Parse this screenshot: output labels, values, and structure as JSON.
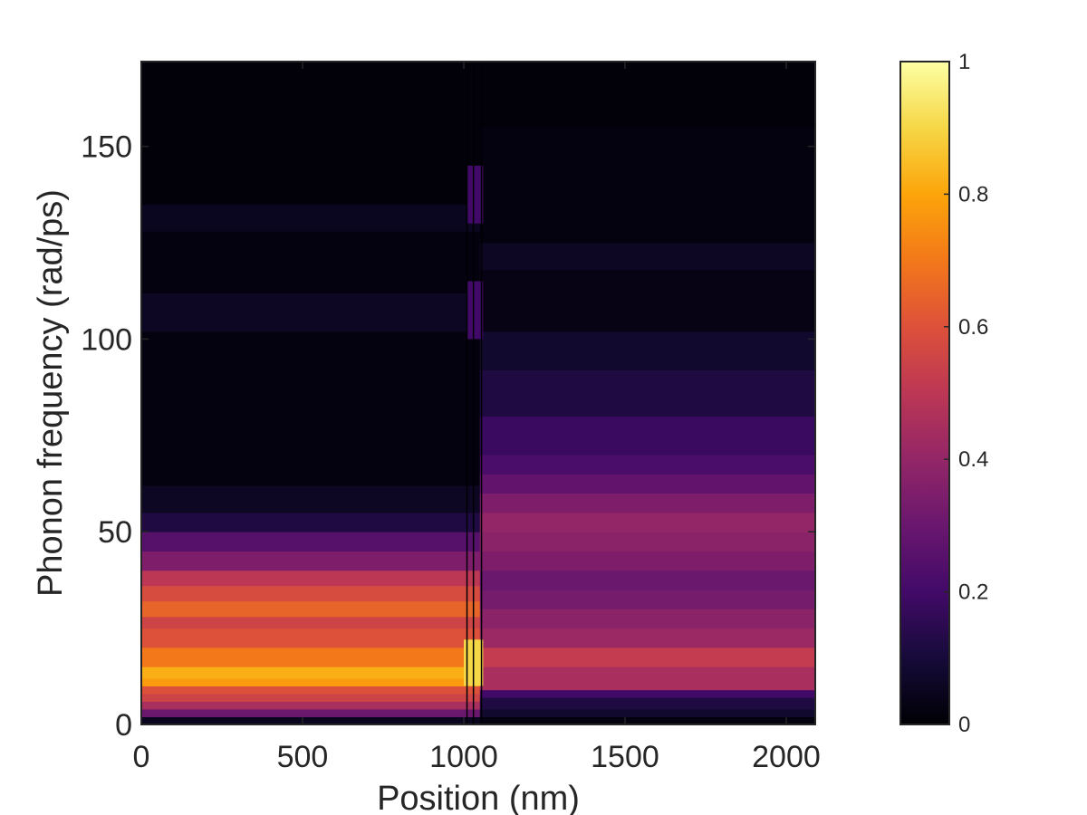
{
  "chart_data": {
    "type": "heatmap",
    "title": "",
    "xlabel": "Position (nm)",
    "ylabel": "Phonon frequency (rad/ps)",
    "xlim": [
      0,
      2090
    ],
    "ylim": [
      0,
      172
    ],
    "xticks": [
      0,
      500,
      1000,
      1500,
      2000
    ],
    "yticks": [
      0,
      50,
      100,
      150
    ],
    "grid": false,
    "legend": "none",
    "colorbar": {
      "placement": "right",
      "range": [
        0,
        1
      ],
      "ticks": [
        0,
        0.2,
        0.4,
        0.6,
        0.8,
        1
      ],
      "tick_labels": [
        "0",
        "0.2",
        "0.4",
        "0.6",
        "0.8",
        "1"
      ],
      "colormap": "inferno"
    },
    "interface_position": 1050,
    "vertical_lines_x": [
      1010,
      1030,
      1055
    ],
    "regions": [
      {
        "x_range": [
          0,
          1050
        ],
        "bands": [
          {
            "y_range": [
              0,
              2
            ],
            "value": 0.05
          },
          {
            "y_range": [
              2,
              4
            ],
            "value": 0.3
          },
          {
            "y_range": [
              4,
              6
            ],
            "value": 0.45
          },
          {
            "y_range": [
              6,
              8
            ],
            "value": 0.55
          },
          {
            "y_range": [
              8,
              10
            ],
            "value": 0.6
          },
          {
            "y_range": [
              10,
              12
            ],
            "value": 0.78
          },
          {
            "y_range": [
              12,
              15
            ],
            "value": 0.82
          },
          {
            "y_range": [
              15,
              20
            ],
            "value": 0.7
          },
          {
            "y_range": [
              20,
              25
            ],
            "value": 0.6
          },
          {
            "y_range": [
              25,
              28
            ],
            "value": 0.55
          },
          {
            "y_range": [
              28,
              32
            ],
            "value": 0.65
          },
          {
            "y_range": [
              32,
              36
            ],
            "value": 0.58
          },
          {
            "y_range": [
              36,
              40
            ],
            "value": 0.5
          },
          {
            "y_range": [
              40,
              45
            ],
            "value": 0.35
          },
          {
            "y_range": [
              45,
              50
            ],
            "value": 0.25
          },
          {
            "y_range": [
              50,
              55
            ],
            "value": 0.12
          },
          {
            "y_range": [
              55,
              62
            ],
            "value": 0.06
          },
          {
            "y_range": [
              62,
              102
            ],
            "value": 0.02
          },
          {
            "y_range": [
              102,
              112
            ],
            "value": 0.06
          },
          {
            "y_range": [
              112,
              128
            ],
            "value": 0.02
          },
          {
            "y_range": [
              128,
              135
            ],
            "value": 0.05
          },
          {
            "y_range": [
              135,
              172
            ],
            "value": 0.01
          }
        ]
      },
      {
        "x_range": [
          1050,
          2090
        ],
        "bands": [
          {
            "y_range": [
              0,
              2
            ],
            "value": 0.02
          },
          {
            "y_range": [
              2,
              4
            ],
            "value": 0.08
          },
          {
            "y_range": [
              4,
              7
            ],
            "value": 0.12
          },
          {
            "y_range": [
              7,
              9
            ],
            "value": 0.2
          },
          {
            "y_range": [
              9,
              15
            ],
            "value": 0.45
          },
          {
            "y_range": [
              15,
              20
            ],
            "value": 0.52
          },
          {
            "y_range": [
              20,
              25
            ],
            "value": 0.42
          },
          {
            "y_range": [
              25,
              30
            ],
            "value": 0.38
          },
          {
            "y_range": [
              30,
              35
            ],
            "value": 0.33
          },
          {
            "y_range": [
              35,
              40
            ],
            "value": 0.3
          },
          {
            "y_range": [
              40,
              45
            ],
            "value": 0.35
          },
          {
            "y_range": [
              45,
              50
            ],
            "value": 0.38
          },
          {
            "y_range": [
              50,
              55
            ],
            "value": 0.4
          },
          {
            "y_range": [
              55,
              60
            ],
            "value": 0.35
          },
          {
            "y_range": [
              60,
              65
            ],
            "value": 0.28
          },
          {
            "y_range": [
              65,
              70
            ],
            "value": 0.22
          },
          {
            "y_range": [
              70,
              80
            ],
            "value": 0.18
          },
          {
            "y_range": [
              80,
              92
            ],
            "value": 0.12
          },
          {
            "y_range": [
              92,
              102
            ],
            "value": 0.08
          },
          {
            "y_range": [
              102,
              118
            ],
            "value": 0.03
          },
          {
            "y_range": [
              118,
              125
            ],
            "value": 0.06
          },
          {
            "y_range": [
              125,
              155
            ],
            "value": 0.02
          },
          {
            "y_range": [
              155,
              172
            ],
            "value": 0.01
          }
        ]
      }
    ],
    "interface_features": [
      {
        "x_range": [
          1000,
          1060
        ],
        "y_range": [
          10,
          22
        ],
        "value": 0.9
      },
      {
        "x_range": [
          1010,
          1060
        ],
        "y_range": [
          100,
          115
        ],
        "value": 0.2
      },
      {
        "x_range": [
          1010,
          1060
        ],
        "y_range": [
          130,
          145
        ],
        "value": 0.2
      }
    ]
  }
}
